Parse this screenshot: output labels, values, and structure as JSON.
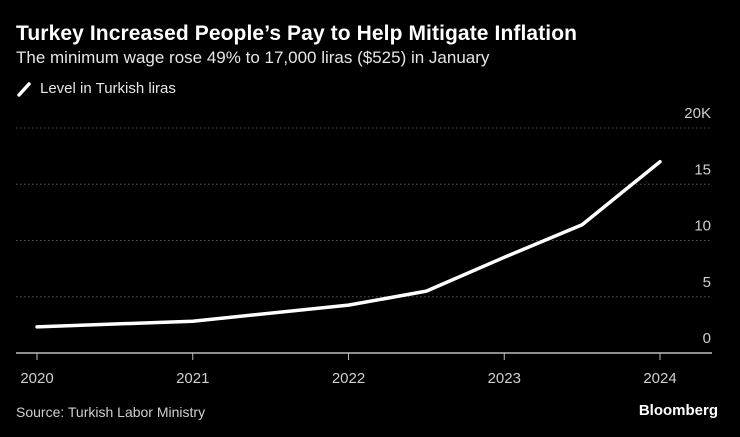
{
  "colors": {
    "background": "#000000",
    "line": "#ffffff",
    "grid": "#555555",
    "text": "#cfcfcf"
  },
  "title": "Turkey Increased People’s Pay to Help Mitigate Inflation",
  "subtitle": "The minimum wage rose 49% to 17,000 liras ($525) in January",
  "source": "Source: Turkish Labor Ministry",
  "logo": "Bloomberg",
  "chart_data": {
    "type": "line",
    "title": "Turkey Increased People’s Pay to Help Mitigate Inflation",
    "subtitle": "The minimum wage rose 49% to 17,000 liras ($525) in January",
    "xlabel": "",
    "ylabel": "",
    "x_ticks": [
      "2020",
      "2021",
      "2022",
      "2023",
      "2024"
    ],
    "y_ticks": [
      "0",
      "5",
      "10",
      "15",
      "20K"
    ],
    "y_tick_values": [
      0,
      5000,
      10000,
      15000,
      20000
    ],
    "xlim": [
      2020,
      2024.3
    ],
    "ylim": [
      0,
      20000
    ],
    "grid": true,
    "y_axis_side": "right",
    "legend_position": "top-left",
    "series": [
      {
        "name": "Level in Turkish liras",
        "x": [
          "2020-01",
          "2021-01",
          "2022-01",
          "2022-07",
          "2023-01",
          "2023-07",
          "2024-01"
        ],
        "values": [
          2324,
          2826,
          4253,
          5500,
          8507,
          11402,
          17002
        ]
      }
    ]
  }
}
